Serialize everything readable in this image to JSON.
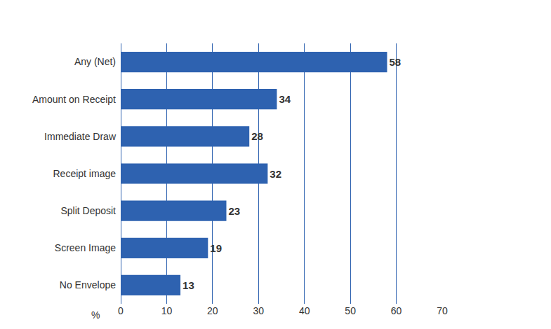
{
  "chart_data": {
    "type": "bar",
    "orientation": "horizontal",
    "categories": [
      "Any (Net)",
      "Amount on Receipt",
      "Immediate Draw",
      "Receipt image",
      "Split Deposit",
      "Screen Image",
      "No Envelope"
    ],
    "values": [
      58,
      34,
      28,
      32,
      23,
      19,
      13
    ],
    "color": "#2e62b0",
    "x_label": "%",
    "xlim": [
      0,
      70
    ],
    "xticks": [
      0,
      10,
      20,
      30,
      40,
      50,
      60,
      70
    ],
    "grid": true,
    "data_labels": true
  }
}
